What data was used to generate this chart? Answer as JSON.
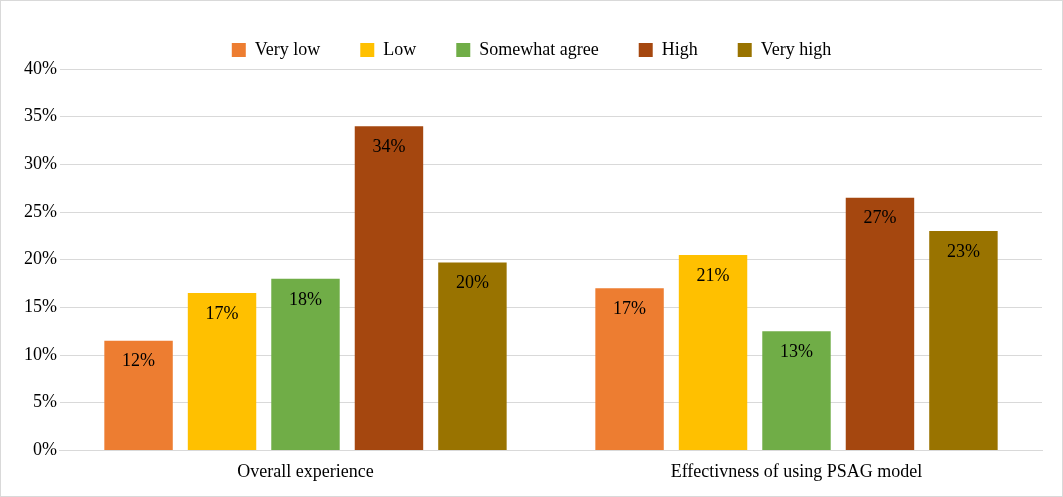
{
  "chart_data": {
    "type": "bar",
    "categories": [
      "Overall experience",
      "Effectivness of using PSAG model"
    ],
    "series": [
      {
        "name": "Very low",
        "color": "#ed7d31",
        "values": [
          11.5,
          17
        ],
        "value_labels": [
          "12%",
          "17%"
        ]
      },
      {
        "name": "Low",
        "color": "#ffc000",
        "values": [
          16.5,
          20.5
        ],
        "value_labels": [
          "17%",
          "21%"
        ]
      },
      {
        "name": "Somewhat agree",
        "color": "#70ad47",
        "values": [
          18,
          12.5
        ],
        "value_labels": [
          "18%",
          "13%"
        ]
      },
      {
        "name": "High",
        "color": "#a5470f",
        "values": [
          34,
          26.5
        ],
        "value_labels": [
          "34%",
          "27%"
        ]
      },
      {
        "name": "Very high",
        "color": "#997300",
        "values": [
          19.7,
          23
        ],
        "value_labels": [
          "20%",
          "23%"
        ]
      }
    ],
    "ylim": [
      0,
      40
    ],
    "yticks": [
      {
        "value": 0,
        "label": "0%"
      },
      {
        "value": 5,
        "label": "5%"
      },
      {
        "value": 10,
        "label": "10%"
      },
      {
        "value": 15,
        "label": "15%"
      },
      {
        "value": 20,
        "label": "20%"
      },
      {
        "value": 25,
        "label": "25%"
      },
      {
        "value": 30,
        "label": "30%"
      },
      {
        "value": 35,
        "label": "35%"
      },
      {
        "value": 40,
        "label": "40%"
      }
    ],
    "grid": "y",
    "legend": "top"
  }
}
